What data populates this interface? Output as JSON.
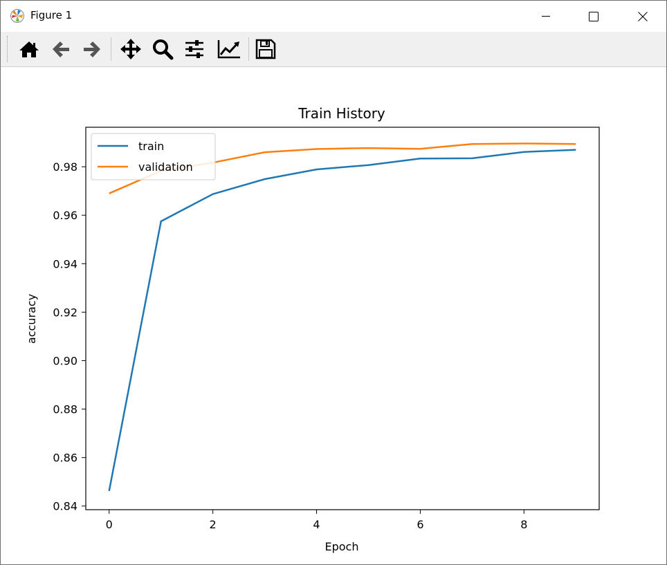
{
  "window": {
    "title": "Figure 1"
  },
  "toolbar": {
    "buttons": [
      {
        "icon": "home-icon"
      },
      {
        "icon": "arrow-left-icon"
      },
      {
        "icon": "arrow-right-icon"
      },
      {
        "icon": "pan-icon"
      },
      {
        "icon": "zoom-icon"
      },
      {
        "icon": "subplots-sliders-icon"
      },
      {
        "icon": "edit-axis-curve-icon"
      },
      {
        "icon": "save-icon"
      }
    ]
  },
  "chart_data": {
    "type": "line",
    "title": "Train History",
    "xlabel": "Epoch",
    "ylabel": "accuracy",
    "xlim": [
      -0.45,
      9.45
    ],
    "ylim": [
      0.8385,
      0.9963
    ],
    "xticks": [
      0,
      2,
      4,
      6,
      8
    ],
    "xtick_labels": [
      "0",
      "2",
      "4",
      "6",
      "8"
    ],
    "yticks": [
      0.84,
      0.86,
      0.88,
      0.9,
      0.92,
      0.94,
      0.96,
      0.98
    ],
    "ytick_labels": [
      "0.84",
      "0.86",
      "0.88",
      "0.90",
      "0.92",
      "0.94",
      "0.96",
      "0.98"
    ],
    "legend_position": "upper left",
    "x": [
      0,
      1,
      2,
      3,
      4,
      5,
      6,
      7,
      8,
      9
    ],
    "series": [
      {
        "name": "train",
        "color": "#1f77b4",
        "values": [
          0.8462,
          0.9575,
          0.9687,
          0.9749,
          0.9789,
          0.9807,
          0.9834,
          0.9835,
          0.9861,
          0.987
        ]
      },
      {
        "name": "validation",
        "color": "#ff7f0e",
        "values": [
          0.969,
          0.9783,
          0.9817,
          0.986,
          0.9873,
          0.9877,
          0.9874,
          0.9894,
          0.9896,
          0.9894
        ]
      }
    ]
  }
}
